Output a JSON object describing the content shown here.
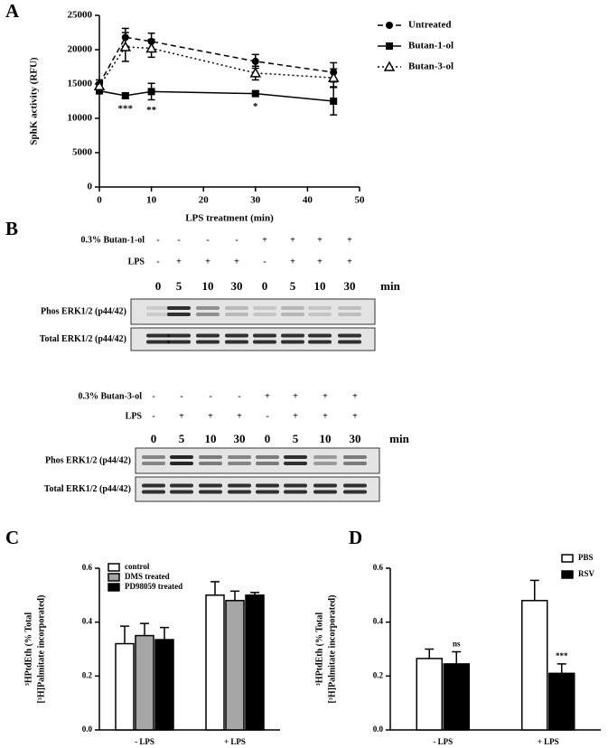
{
  "panels": [
    "A",
    "B",
    "C",
    "D"
  ],
  "chart_data": [
    {
      "type": "line",
      "x": [
        0,
        5,
        10,
        30,
        45
      ],
      "xlabel": "LPS treatment (min)",
      "ylabel": "SphK activity (RFU)",
      "xlim": [
        0,
        50
      ],
      "xticks": [
        0,
        10,
        20,
        30,
        40,
        50
      ],
      "ylim": [
        0,
        25000
      ],
      "yticks": [
        0,
        5000,
        10000,
        15000,
        20000,
        25000
      ],
      "legend": "right",
      "series": [
        {
          "name": "Untreated",
          "color": "#000000",
          "dash": "dashed",
          "marker": "circle",
          "values": [
            15000,
            21800,
            21200,
            18300,
            16700
          ],
          "errors": [
            600,
            1300,
            1200,
            1000,
            1400
          ]
        },
        {
          "name": "Butan-1-ol",
          "color": "#000000",
          "dash": "solid",
          "marker": "square",
          "values": [
            14000,
            13300,
            13900,
            13600,
            12500
          ],
          "errors": [
            400,
            400,
            1200,
            400,
            2000
          ],
          "annotations": [
            null,
            "***",
            "**",
            "*",
            null
          ]
        },
        {
          "name": "Butan-3-ol",
          "color": "#000000",
          "dash": "dotted",
          "marker": "triangle",
          "values": [
            14700,
            20400,
            20200,
            16600,
            15900
          ],
          "errors": [
            500,
            2100,
            1300,
            1000,
            1300
          ]
        }
      ]
    },
    {
      "type": "bar",
      "categories": [
        "- LPS",
        "+ LPS"
      ],
      "ylabel": [
        "³HPtdEth (% Total",
        "[³H]Palmitate incorporated)"
      ],
      "ylim": [
        0,
        0.6
      ],
      "yticks": [
        {
          "value": 0,
          "label": "0.0"
        },
        0.2,
        0.4,
        0.6
      ],
      "legend": "upper left",
      "series": [
        {
          "name": "control",
          "color": "#ffffff",
          "values": [
            0.32,
            0.5
          ],
          "errors": [
            0.065,
            0.05
          ]
        },
        {
          "name": "DMS treated",
          "color": "#a6a6a6",
          "values": [
            0.35,
            0.48
          ],
          "errors": [
            0.045,
            0.035
          ]
        },
        {
          "name": "PD98059 treated",
          "color": "#000000",
          "values": [
            0.335,
            0.5
          ],
          "errors": [
            0.045,
            0.01
          ]
        }
      ]
    },
    {
      "type": "bar",
      "categories": [
        "- LPS",
        "+ LPS"
      ],
      "ylabel": [
        "³HPtdEth (% Total",
        "[³H]Palmitate incorporated)"
      ],
      "ylim": [
        0,
        0.6
      ],
      "yticks": [
        {
          "value": 0,
          "label": "0.0"
        },
        0.2,
        0.4,
        0.6
      ],
      "legend": "upper right",
      "series": [
        {
          "name": "PBS",
          "color": "#ffffff",
          "values": [
            0.265,
            0.48
          ],
          "errors": [
            0.035,
            0.075
          ]
        },
        {
          "name": "RSV",
          "color": "#000000",
          "values": [
            0.245,
            0.21
          ],
          "errors": [
            0.045,
            0.035
          ],
          "annotations": [
            "ns",
            "***"
          ]
        }
      ]
    }
  ],
  "blots": [
    {
      "treatment": "0.3% Butan-1-ol",
      "treatment_signs": [
        "-",
        "-",
        "-",
        "-",
        "+",
        "+",
        "+",
        "+"
      ],
      "lps_label": "LPS",
      "lps_signs": [
        "-",
        "+",
        "+",
        "+",
        "-",
        "+",
        "+",
        "+"
      ],
      "times": [
        0,
        5,
        10,
        30,
        0,
        5,
        10,
        30
      ],
      "time_unit": "min",
      "rows": [
        "Phos ERK1/2 (p44/42)",
        "Total ERK1/2 (p44/42)"
      ]
    },
    {
      "treatment": "0.3% Butan-3-ol",
      "treatment_signs": [
        "-",
        "-",
        "-",
        "-",
        "+",
        "+",
        "+",
        "+"
      ],
      "lps_label": "LPS",
      "lps_signs": [
        "-",
        "+",
        "+",
        "+",
        "-",
        "+",
        "+",
        "+"
      ],
      "times": [
        0,
        5,
        10,
        30,
        0,
        5,
        10,
        30
      ],
      "time_unit": "min",
      "rows": [
        "Phos ERK1/2 (p44/42)",
        "Total ERK1/2 (p44/42)"
      ]
    }
  ]
}
